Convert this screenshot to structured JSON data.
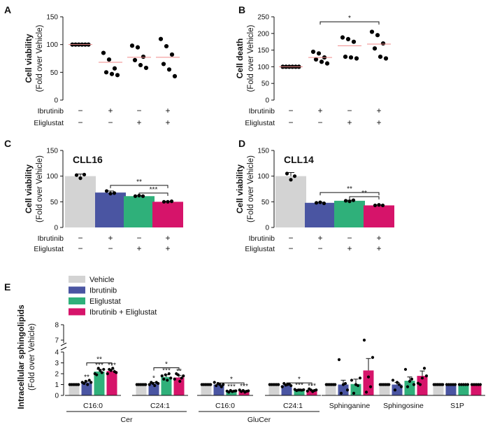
{
  "colors": {
    "vehicle": "#d3d3d3",
    "ibrutinib": "#4a55a2",
    "eliglustat": "#2fb07a",
    "combo": "#d6146a",
    "median": "#f08a8a",
    "dot": "#000000"
  },
  "conditions": {
    "ibrutinib_label": "Ibrutinib",
    "eliglustat_label": "Eliglustat",
    "ibrutinib": [
      "−",
      "+",
      "−",
      "+"
    ],
    "eliglustat": [
      "−",
      "−",
      "+",
      "+"
    ]
  },
  "chart_data": [
    {
      "panel": "A",
      "type": "scatter",
      "ylabel": [
        "Cell viability",
        "(Fold over Vehicle)"
      ],
      "ylim": [
        0,
        150
      ],
      "yticks": [
        "0",
        "50",
        "100",
        "150"
      ],
      "groups": [
        {
          "points": [
            100,
            100,
            100,
            100,
            100,
            100
          ],
          "median": 100
        },
        {
          "points": [
            85,
            73,
            57,
            50,
            47,
            45
          ],
          "median": 68
        },
        {
          "points": [
            98,
            95,
            78,
            72,
            63,
            58
          ],
          "median": 77
        },
        {
          "points": [
            110,
            97,
            82,
            65,
            55,
            43
          ],
          "median": 77
        }
      ]
    },
    {
      "panel": "B",
      "type": "scatter",
      "ylabel": [
        "Cell death",
        "(Fold over Vehicle)"
      ],
      "ylim": [
        0,
        250
      ],
      "yticks": [
        "0",
        "50",
        "100",
        "150",
        "200",
        "250"
      ],
      "groups": [
        {
          "points": [
            100,
            100,
            100,
            100,
            100,
            100
          ],
          "median": 100
        },
        {
          "points": [
            145,
            140,
            128,
            122,
            115,
            110
          ],
          "median": 128
        },
        {
          "points": [
            188,
            183,
            175,
            130,
            128,
            125
          ],
          "median": 163
        },
        {
          "points": [
            205,
            195,
            170,
            155,
            130,
            125
          ],
          "median": 168
        }
      ],
      "sig": [
        {
          "from": 1,
          "to": 3,
          "label": "*",
          "y": 235
        }
      ]
    },
    {
      "panel": "C",
      "type": "bar",
      "title": "CLL16",
      "ylabel": [
        "Cell viability",
        "(Fold over Vehicle)"
      ],
      "ylim": [
        0,
        150
      ],
      "yticks": [
        "0",
        "50",
        "100",
        "150"
      ],
      "values": [
        100,
        68,
        61,
        50
      ],
      "errors": [
        4,
        3,
        1,
        1
      ],
      "points": [
        [
          102,
          96,
          103
        ],
        [
          71,
          66,
          67
        ],
        [
          61,
          62,
          61
        ],
        [
          50,
          50,
          51
        ]
      ],
      "sig": [
        {
          "from": 1,
          "to": 3,
          "label": "**",
          "y": 82
        },
        {
          "from": 2,
          "to": 3,
          "label": "***",
          "y": 67
        }
      ]
    },
    {
      "panel": "D",
      "type": "bar",
      "title": "CLL14",
      "ylabel": [
        "Cell viability",
        "(Fold over Vehicle)"
      ],
      "ylim": [
        0,
        150
      ],
      "yticks": [
        "0",
        "50",
        "100",
        "150"
      ],
      "values": [
        100,
        48,
        52,
        43
      ],
      "errors": [
        7,
        1,
        1,
        1
      ],
      "points": [
        [
          105,
          93,
          100
        ],
        [
          48,
          49,
          47
        ],
        [
          52,
          51,
          53
        ],
        [
          43,
          44,
          43
        ]
      ],
      "sig": [
        {
          "from": 1,
          "to": 3,
          "label": "**",
          "y": 68
        },
        {
          "from": 2,
          "to": 3,
          "label": "**",
          "y": 60
        }
      ]
    },
    {
      "panel": "E",
      "type": "bar",
      "ylabel": [
        "Intracellular sphingolipids",
        "(Fold over Vehicle)"
      ],
      "ylim": [
        0,
        8
      ],
      "yticks_lower": [
        "0",
        "1",
        "2",
        "3",
        "4"
      ],
      "yticks_upper": [
        "7",
        "8"
      ],
      "legend": [
        "Vehicle",
        "Ibrutinib",
        "Eliglustat",
        "Ibrutinib + Eliglustat"
      ],
      "categories": [
        "C16:0",
        "C24:1",
        "C16:0",
        "C24:1",
        "Sphinganine",
        "Sphingosine",
        "S1P"
      ],
      "category_groups": [
        {
          "label": "Cer",
          "span": [
            0,
            1
          ]
        },
        {
          "label": "GluCer",
          "span": [
            2,
            3
          ]
        }
      ],
      "series": [
        {
          "name": "Vehicle",
          "values": [
            1,
            1,
            1,
            1,
            1,
            1,
            1
          ],
          "errors": [
            0,
            0,
            0,
            0,
            0,
            0,
            0
          ]
        },
        {
          "name": "Ibrutinib",
          "values": [
            1.2,
            1.1,
            1.0,
            0.95,
            1.0,
            1.0,
            1.0
          ],
          "errors": [
            0.1,
            0.1,
            0.08,
            0.1,
            0.4,
            0.2,
            0.02
          ]
        },
        {
          "name": "Eliglustat",
          "values": [
            2.2,
            1.7,
            0.38,
            0.5,
            1.05,
            1.35,
            1.0
          ],
          "errors": [
            0.2,
            0.2,
            0.05,
            0.05,
            0.45,
            0.35,
            0.02
          ]
        },
        {
          "name": "Ibrutinib + Eliglustat",
          "values": [
            2.25,
            1.65,
            0.4,
            0.45,
            2.3,
            1.8,
            1.0
          ],
          "errors": [
            0.15,
            0.2,
            0.05,
            0.05,
            1.1,
            0.45,
            0.02
          ]
        }
      ],
      "points": [
        [
          [
            1,
            1,
            1,
            1,
            1,
            1
          ],
          [
            1.2,
            1.1,
            1.3,
            1.0,
            1.4,
            1.2
          ],
          [
            2.0,
            1.9,
            2.5,
            2.3,
            2.1,
            2.4
          ],
          [
            2.0,
            2.4,
            2.3,
            2.5,
            2.2,
            2.1
          ]
        ],
        [
          [
            1,
            1,
            1,
            1,
            1,
            1
          ],
          [
            1.0,
            1.2,
            1.1,
            0.9,
            1.2,
            1.1
          ],
          [
            1.8,
            1.5,
            1.9,
            1.4,
            2.0,
            1.6
          ],
          [
            1.5,
            2.0,
            1.9,
            1.3,
            1.6,
            1.8
          ]
        ],
        [
          [
            1,
            1,
            1,
            1,
            1,
            1
          ],
          [
            1.2,
            0.9,
            1.1,
            1.0,
            0.8,
            1.0
          ],
          [
            0.4,
            0.3,
            0.45,
            0.35,
            0.4,
            0.42
          ],
          [
            0.5,
            0.35,
            0.45,
            0.3,
            0.38,
            0.42
          ]
        ],
        [
          [
            1,
            1,
            1,
            1,
            1,
            1
          ],
          [
            0.8,
            1.1,
            0.95,
            1.0,
            1.05,
            0.9
          ],
          [
            0.55,
            0.45,
            0.5,
            0.5,
            0.48,
            0.52
          ],
          [
            0.4,
            0.6,
            0.5,
            0.35,
            0.45,
            0.5
          ]
        ],
        [
          [
            1,
            1,
            1,
            1,
            1,
            1
          ],
          [
            3.3,
            0.2,
            1.0,
            1.1,
            0.5
          ],
          [
            1.4,
            0.2,
            1.0,
            0.9,
            1.6
          ],
          [
            7.0,
            0.3,
            1.7,
            0.8,
            3.5
          ]
        ],
        [
          [
            1,
            1,
            1,
            1,
            1,
            1
          ],
          [
            1.4,
            0.5,
            1.2,
            1.0,
            0.8
          ],
          [
            2.4,
            0.8,
            1.3,
            1.5,
            1.0
          ],
          [
            4.2,
            1.0,
            1.6,
            2.5,
            1.8
          ]
        ],
        [
          [
            1,
            1,
            1,
            1,
            1,
            1
          ],
          [
            1,
            1,
            1,
            1,
            1
          ],
          [
            1,
            1,
            1,
            1,
            1
          ],
          [
            1,
            1,
            1,
            1,
            1
          ]
        ]
      ],
      "marks": [
        [
          "",
          "**",
          "***",
          "***"
        ],
        [
          "",
          "*",
          "***",
          "**"
        ],
        [
          "",
          "",
          "***",
          "***"
        ],
        [
          "",
          "",
          "***",
          "***"
        ],
        [
          "",
          "",
          "",
          ""
        ],
        [
          "",
          "",
          "",
          ""
        ],
        [
          "",
          "",
          "",
          ""
        ]
      ],
      "sig": [
        {
          "category": 0,
          "from": 1,
          "to": 3,
          "label": "**",
          "y": 3.0
        },
        {
          "category": 1,
          "from": 1,
          "to": 3,
          "label": "*",
          "y": 2.55
        },
        {
          "category": 2,
          "from": 1,
          "to": 3,
          "label": "*",
          "y": 1.15
        },
        {
          "category": 3,
          "from": 1,
          "to": 3,
          "label": "*",
          "y": 1.15
        }
      ]
    }
  ]
}
